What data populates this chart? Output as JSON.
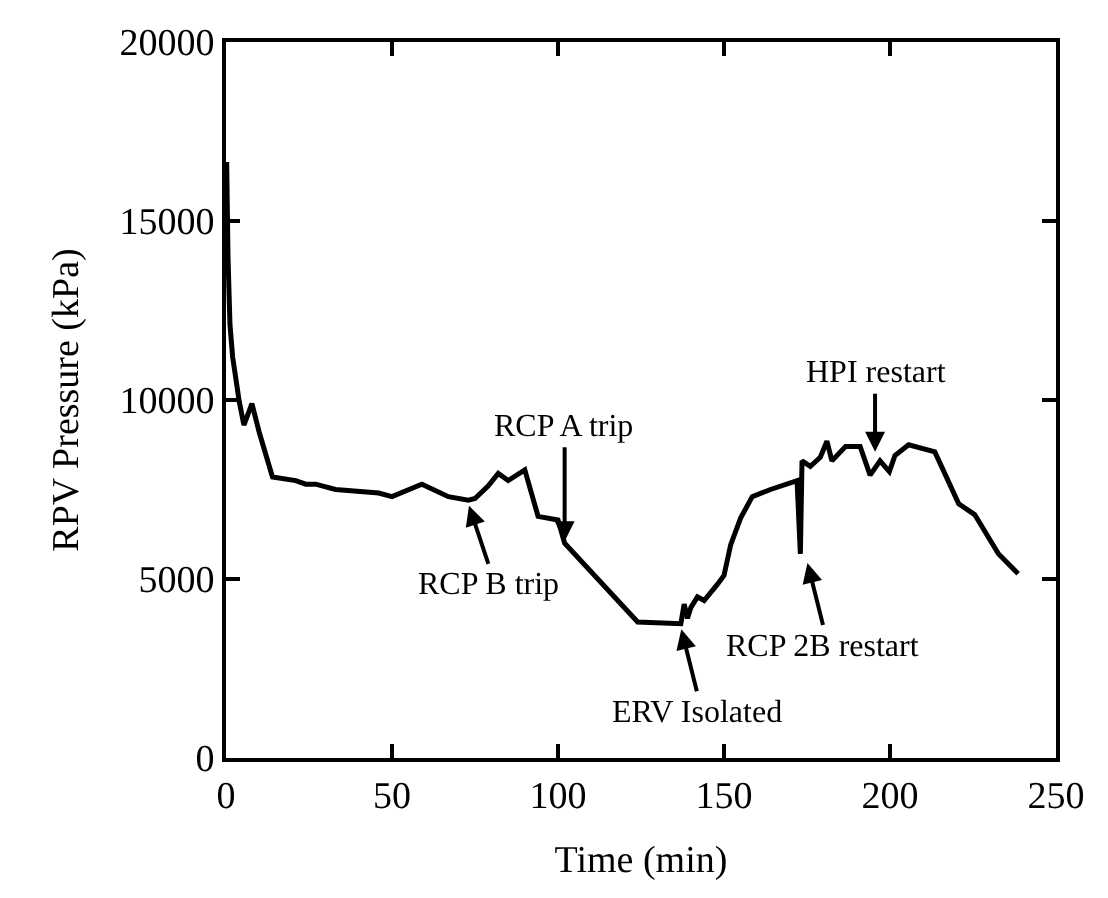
{
  "chart_data": {
    "type": "line",
    "xlabel": "Time (min)",
    "ylabel": "RPV Pressure (kPa)",
    "xlim": [
      0,
      250
    ],
    "xticks": [
      0,
      50,
      100,
      150,
      200,
      250
    ],
    "ylim": [
      0,
      20000
    ],
    "yticks": [
      0,
      5000,
      10000,
      15000,
      20000
    ],
    "grid": false,
    "series": [
      {
        "color": "#000000",
        "x": [
          0,
          0.2,
          0.6,
          1.2,
          2,
          4,
          5.4,
          7.8,
          10,
          14,
          21,
          24,
          27,
          33,
          46,
          50,
          59,
          67,
          73,
          75,
          79,
          82,
          85,
          90,
          94,
          100,
          102,
          124,
          137,
          138,
          139,
          140,
          142,
          144,
          148,
          150,
          152,
          155,
          158.5,
          164,
          172,
          173,
          173.5,
          176,
          179,
          181,
          182.5,
          186.6,
          191,
          194,
          197,
          199.8,
          201.5,
          205.6,
          213.5,
          220.7,
          225.5,
          232.7,
          238.6
        ],
        "values": [
          13500,
          16650,
          14000,
          12100,
          11200,
          9950,
          9300,
          9900,
          9100,
          7850,
          7750,
          7650,
          7650,
          7500,
          7400,
          7300,
          7650,
          7300,
          7200,
          7250,
          7600,
          7950,
          7750,
          8050,
          6750,
          6650,
          6000,
          3800,
          3750,
          4300,
          3900,
          4200,
          4500,
          4400,
          4850,
          5100,
          5950,
          6700,
          7300,
          7500,
          7750,
          5700,
          8300,
          8150,
          8400,
          8850,
          8300,
          8700,
          8700,
          7900,
          8300,
          8000,
          8450,
          8750,
          8550,
          7100,
          6800,
          5700,
          5150
        ]
      }
    ],
    "annotations": [
      {
        "text": "RCP A trip",
        "x": 102,
        "y": 6000
      },
      {
        "text": "RCP B trip",
        "x": 73,
        "y": 7100
      },
      {
        "text": "ERV Isolated",
        "x": 137,
        "y": 3650
      },
      {
        "text": "RCP 2B restart",
        "x": 175,
        "y": 5500
      },
      {
        "text": "HPI restart",
        "x": 195.5,
        "y": 8500
      }
    ]
  }
}
